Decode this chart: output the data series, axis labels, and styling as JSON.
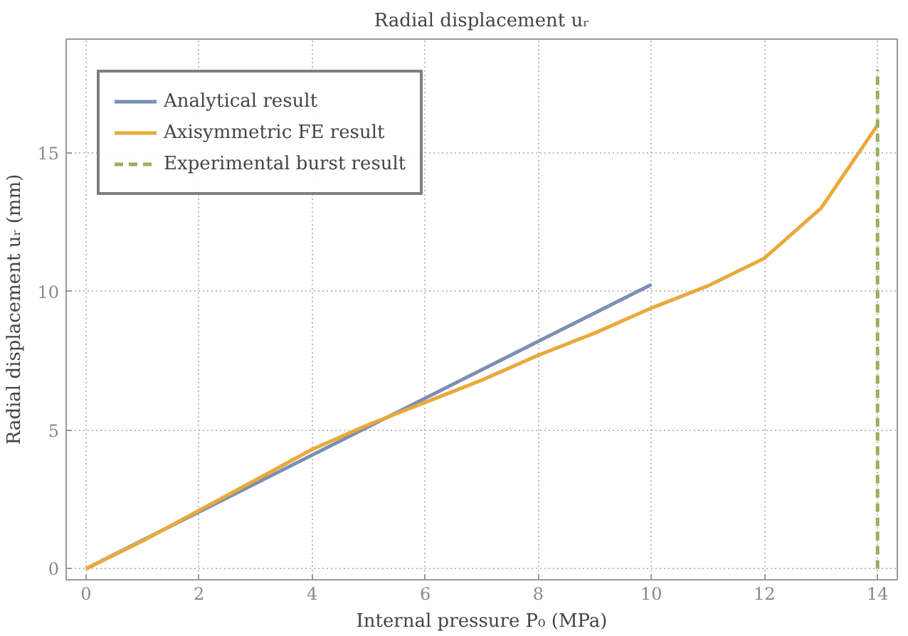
{
  "chart_data": {
    "type": "line",
    "title": "Radial displacement uᵣ",
    "xlabel": "Internal pressure P₀ (MPa)",
    "ylabel": "Radial displacement uᵣ (mm)",
    "xlim": [
      -0.35,
      14.35
    ],
    "ylim": [
      -0.4,
      19.1
    ],
    "xticks": [
      0,
      2,
      4,
      6,
      8,
      10,
      12,
      14
    ],
    "yticks": [
      0,
      5,
      10,
      15
    ],
    "grid": true,
    "legend": "top left",
    "marker": "none",
    "series": [
      {
        "name": "Analytical result",
        "color": "#7b8fb3",
        "x": [
          0,
          10
        ],
        "values": [
          0,
          10.25
        ],
        "line_style": "solid"
      },
      {
        "name": "Axisymmetric FE result",
        "color": "#e9a93c",
        "x": [
          0,
          1,
          2,
          3,
          4,
          5,
          6,
          7,
          8,
          9,
          10,
          11,
          12,
          13,
          14
        ],
        "values": [
          0,
          1.0,
          2.1,
          3.2,
          4.3,
          5.2,
          6.0,
          6.8,
          7.7,
          8.5,
          9.4,
          10.2,
          11.2,
          13.0,
          16.0
        ],
        "line_style": "solid"
      },
      {
        "name": "Experimental burst result",
        "color": "#9aae5c",
        "x": [
          14,
          14
        ],
        "values": [
          0,
          18.0
        ],
        "line_style": "dashed"
      }
    ]
  }
}
